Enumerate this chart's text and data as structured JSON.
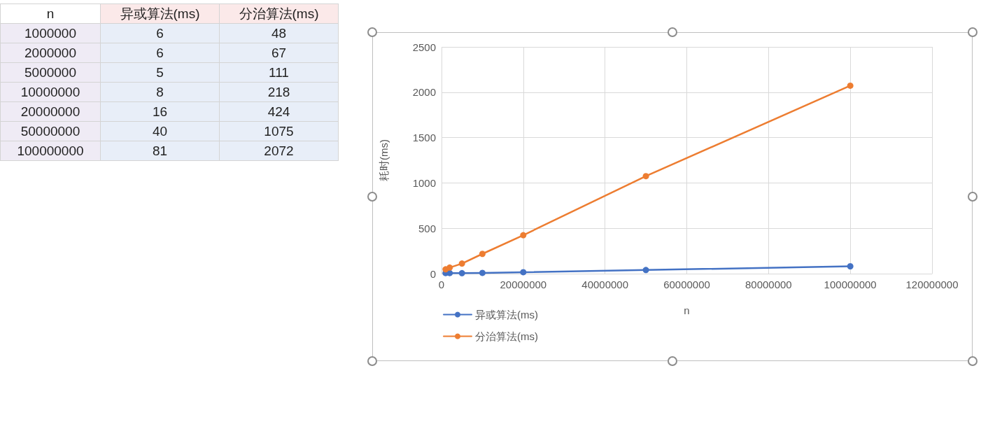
{
  "chart_data": [
    {
      "type": "other",
      "xlabel": "n",
      "data_labels": true,
      "categories": [
        "1000000",
        "2000000",
        "5000000",
        "10000000",
        "20000000",
        "50000000",
        "100000000"
      ],
      "series": [
        {
          "name": "异或算法(ms)",
          "values": [
            6,
            6,
            5,
            8,
            16,
            40,
            81
          ]
        },
        {
          "name": "分治算法(ms)",
          "values": [
            48,
            67,
            111,
            218,
            424,
            1075,
            2072
          ]
        }
      ]
    },
    {
      "type": "line",
      "xlabel": "n",
      "ylabel": "耗时(ms)",
      "x": [
        1000000,
        2000000,
        5000000,
        10000000,
        20000000,
        50000000,
        100000000
      ],
      "series": [
        {
          "name": "异或算法(ms)",
          "color": "#4472c4",
          "values": [
            6,
            6,
            5,
            8,
            16,
            40,
            81
          ]
        },
        {
          "name": "分治算法(ms)",
          "color": "#ed7d31",
          "values": [
            48,
            67,
            111,
            218,
            424,
            1075,
            2072
          ]
        }
      ],
      "xlim": [
        0,
        120000000
      ],
      "xticks": [
        0,
        20000000,
        40000000,
        60000000,
        80000000,
        100000000,
        120000000
      ],
      "ylim": [
        0,
        2500
      ],
      "yticks": [
        0,
        500,
        1000,
        1500,
        2000,
        2500
      ],
      "grid": true,
      "legend": "bottom left",
      "marker": "circle",
      "line_style": "solid"
    }
  ]
}
